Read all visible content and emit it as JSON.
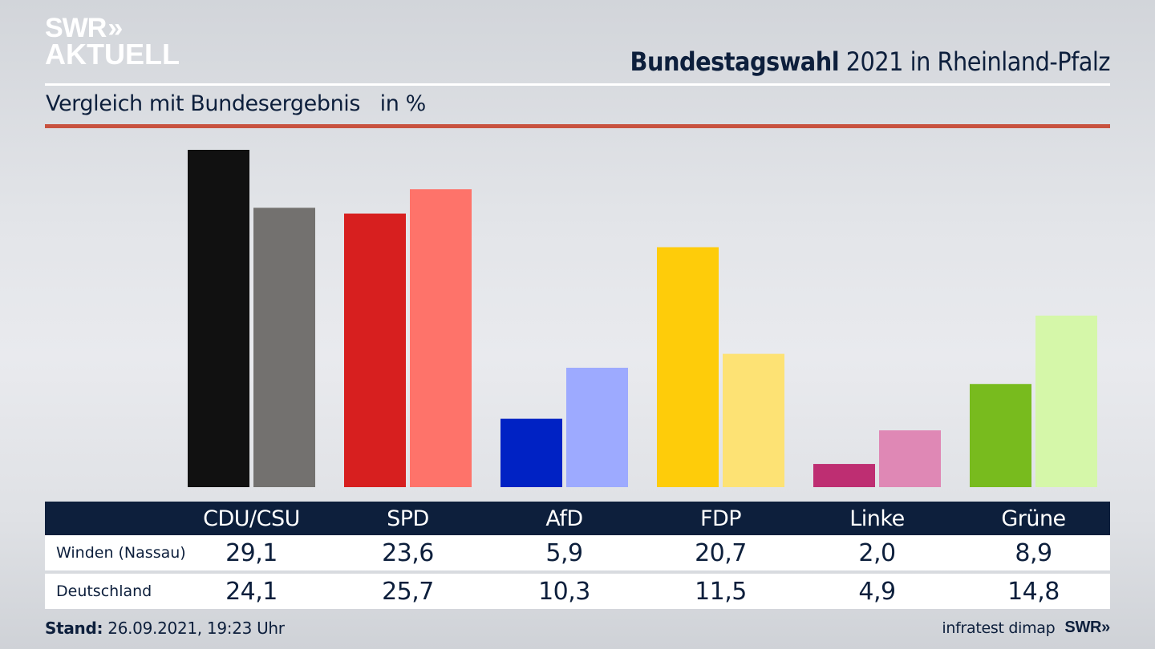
{
  "logo": {
    "line1": "SWR",
    "arrows": "»",
    "line2": "AKTUELL"
  },
  "header": {
    "title_bold": "Bundestagswahl",
    "title_rest": " 2021 in Rheinland-Pfalz",
    "subtitle": "Vergleich mit Bundesergebnis   in %"
  },
  "colors": {
    "navy": "#0d1f3c",
    "accent_red": "#c8523f"
  },
  "chart_data": {
    "type": "bar",
    "title": "Bundestagswahl 2021 in Rheinland-Pfalz",
    "subtitle": "Vergleich mit Bundesergebnis in %",
    "xlabel": "",
    "ylabel": "in %",
    "ylim": [
      0,
      29.1
    ],
    "grid": false,
    "legend": "table-below",
    "categories": [
      "CDU/CSU",
      "SPD",
      "AfD",
      "FDP",
      "Linke",
      "Grüne"
    ],
    "series": [
      {
        "name": "Winden (Nassau)",
        "values": [
          29.1,
          23.6,
          5.9,
          20.7,
          2.0,
          8.9
        ],
        "labels": [
          "29,1",
          "23,6",
          "5,9",
          "20,7",
          "2,0",
          "8,9"
        ],
        "colors": [
          "#111111",
          "#d71f1f",
          "#0022c4",
          "#fecc0a",
          "#be2e72",
          "#78bb1e"
        ]
      },
      {
        "name": "Deutschland",
        "values": [
          24.1,
          25.7,
          10.3,
          11.5,
          4.9,
          14.8
        ],
        "labels": [
          "24,1",
          "25,7",
          "10,3",
          "11,5",
          "4,9",
          "14,8"
        ],
        "colors": [
          "#73716f",
          "#fe736a",
          "#9daaff",
          "#fde274",
          "#df88b5",
          "#d5f7a9"
        ]
      }
    ]
  },
  "footer": {
    "stand_label": "Stand:",
    "stand_value": " 26.09.2021, 19:23 Uhr",
    "source": "infratest dimap",
    "brand": "SWR»"
  }
}
